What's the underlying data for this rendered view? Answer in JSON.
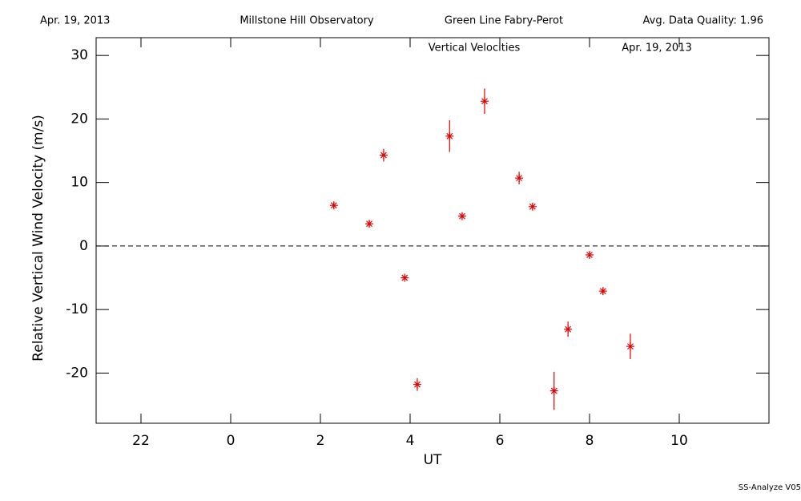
{
  "header": {
    "left": "Apr. 19, 2013",
    "observatory": "Millstone Hill Observatory",
    "instrument": "Green Line Fabry-Perot",
    "quality": "Avg. Data Quality: 1.96"
  },
  "footer": "SS-Analyze V05",
  "chart_data": {
    "type": "scatter",
    "title": "Vertical Velocities",
    "date_label": "Apr. 19, 2013",
    "x_label": "UT",
    "y_label": "Relative Vertical Wind Velocity (m/s)",
    "xlim": [
      -3,
      12
    ],
    "ylim": [
      -27.9,
      32.8
    ],
    "xticks": [
      {
        "value": -2,
        "label": "22"
      },
      0,
      2,
      4,
      6,
      8,
      10
    ],
    "yticks": [
      -20,
      -10,
      0,
      10,
      20,
      30
    ],
    "hline": 0,
    "series": [
      {
        "color": "#e00000",
        "x": [
          2.3,
          3.09,
          3.41,
          3.88,
          4.16,
          4.88,
          5.16,
          5.66,
          6.43,
          6.73,
          7.21,
          7.52,
          8.0,
          8.3,
          8.91
        ],
        "values": [
          6.4,
          3.5,
          14.3,
          -5.0,
          -21.8,
          17.3,
          4.7,
          22.8,
          10.7,
          6.2,
          -22.8,
          -13.1,
          -1.4,
          -7.1,
          -15.8
        ],
        "errors": [
          0.5,
          0.5,
          1.0,
          0.3,
          1.0,
          2.5,
          0.5,
          2.0,
          1.0,
          0.5,
          3.0,
          1.2,
          0.5,
          0.5,
          2.0
        ]
      }
    ]
  }
}
